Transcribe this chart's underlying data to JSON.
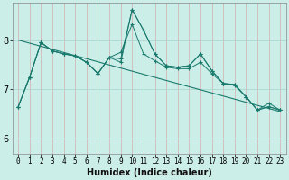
{
  "xlabel": "Humidex (Indice chaleur)",
  "background_color": "#cceee8",
  "vgrid_color": "#d4b8b8",
  "hgrid_color": "#aad8d0",
  "line_color": "#1a7a6e",
  "x_ticks": [
    0,
    1,
    2,
    3,
    4,
    5,
    6,
    7,
    8,
    9,
    10,
    11,
    12,
    13,
    14,
    15,
    16,
    17,
    18,
    19,
    20,
    21,
    22,
    23
  ],
  "y_ticks": [
    6,
    7,
    8
  ],
  "ylim": [
    5.7,
    8.75
  ],
  "xlim": [
    -0.5,
    23.5
  ],
  "series": [
    {
      "x": [
        0,
        1,
        2,
        3,
        4,
        5,
        6,
        7,
        8,
        9,
        10,
        11,
        12,
        13,
        14,
        15,
        16,
        17,
        18,
        19,
        20,
        21,
        22,
        23
      ],
      "y": [
        6.65,
        7.25,
        7.95,
        7.78,
        7.72,
        7.68,
        7.55,
        7.32,
        7.65,
        7.62,
        8.62,
        8.2,
        7.72,
        7.48,
        7.45,
        7.48,
        7.72,
        7.38,
        7.12,
        7.1,
        6.85,
        6.58,
        6.65,
        6.58
      ]
    },
    {
      "x": [
        0,
        1,
        2,
        3,
        4,
        5,
        6,
        7,
        8,
        9,
        10,
        11,
        12,
        13,
        14,
        15,
        16,
        17,
        18,
        19,
        20,
        21,
        22,
        23
      ],
      "y": [
        6.65,
        7.25,
        7.95,
        7.78,
        7.72,
        7.68,
        7.55,
        7.32,
        7.65,
        7.75,
        8.32,
        7.72,
        7.58,
        7.45,
        7.42,
        7.42,
        7.55,
        7.32,
        7.12,
        7.08,
        6.85,
        6.58,
        6.72,
        6.58
      ]
    },
    {
      "x": [
        0,
        1,
        2,
        3,
        4,
        5,
        6,
        7,
        8,
        9,
        10,
        11,
        12,
        13,
        14,
        15,
        16,
        17,
        18,
        19,
        20,
        21,
        22,
        23
      ],
      "y": [
        6.65,
        7.25,
        7.95,
        7.78,
        7.72,
        7.68,
        7.55,
        7.32,
        7.65,
        7.55,
        8.62,
        8.2,
        7.72,
        7.48,
        7.45,
        7.48,
        7.72,
        7.38,
        7.12,
        7.1,
        6.85,
        6.58,
        6.65,
        6.58
      ]
    },
    {
      "x": [
        0,
        23
      ],
      "y": [
        8.0,
        6.55
      ]
    }
  ]
}
